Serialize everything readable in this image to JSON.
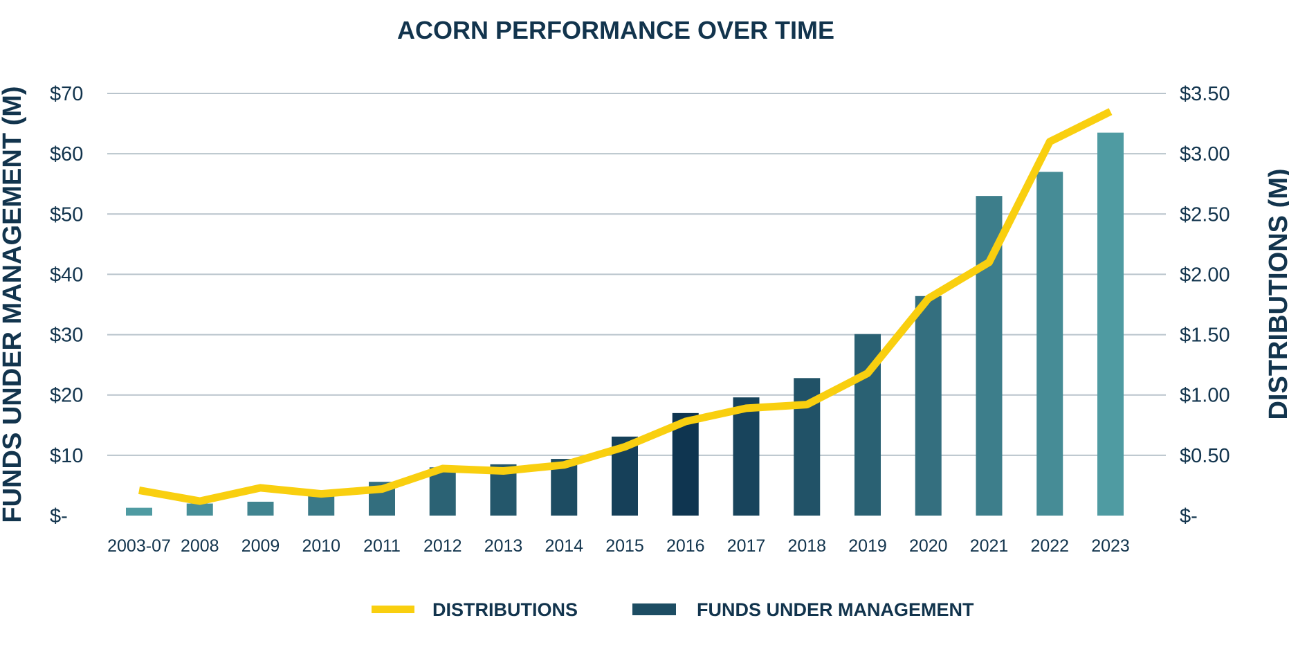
{
  "chart_data": {
    "type": "bar",
    "title": "ACORN PERFORMANCE OVER TIME",
    "categories": [
      "2003-07",
      "2008",
      "2009",
      "2010",
      "2011",
      "2012",
      "2013",
      "2014",
      "2015",
      "2016",
      "2017",
      "2018",
      "2019",
      "2020",
      "2021",
      "2022",
      "2023"
    ],
    "series": [
      {
        "name": "FUNDS UNDER MANAGEMENT",
        "type": "bar",
        "axis": "left",
        "values": [
          1.3,
          2.0,
          2.3,
          4.2,
          5.6,
          8.0,
          8.5,
          9.4,
          13.1,
          17.0,
          19.6,
          22.8,
          30.1,
          36.4,
          53.0,
          57.0,
          63.5
        ]
      },
      {
        "name": "DISTRIBUTIONS",
        "type": "line",
        "axis": "right",
        "values": [
          0.21,
          0.12,
          0.23,
          0.18,
          0.22,
          0.39,
          0.37,
          0.42,
          0.57,
          0.78,
          0.89,
          0.92,
          1.18,
          1.8,
          2.1,
          3.1,
          3.35
        ]
      }
    ],
    "ylabel": "FUNDS UNDER MANAGEMENT (M)",
    "y2label": "DISTRIBUTIONS (M)",
    "ylim": [
      0,
      70
    ],
    "y2lim": [
      0,
      3.5
    ],
    "yticks": [
      "$-",
      "$10",
      "$20",
      "$30",
      "$40",
      "$50",
      "$60",
      "$70"
    ],
    "y2ticks": [
      "$-",
      "$0.50",
      "$1.00",
      "$1.50",
      "$2.00",
      "$2.50",
      "$3.00",
      "$3.50"
    ],
    "grid": true,
    "legend": [
      "DISTRIBUTIONS",
      "FUNDS UNDER MANAGEMENT"
    ],
    "legend_position": "bottom",
    "colors": {
      "line": "#f9cf0f",
      "bar_dark": "#0f3550",
      "bar_light": "#4f9ba2",
      "legend_bar": "#1d4d63",
      "text": "#12344d",
      "grid": "#b9c4cc"
    }
  }
}
